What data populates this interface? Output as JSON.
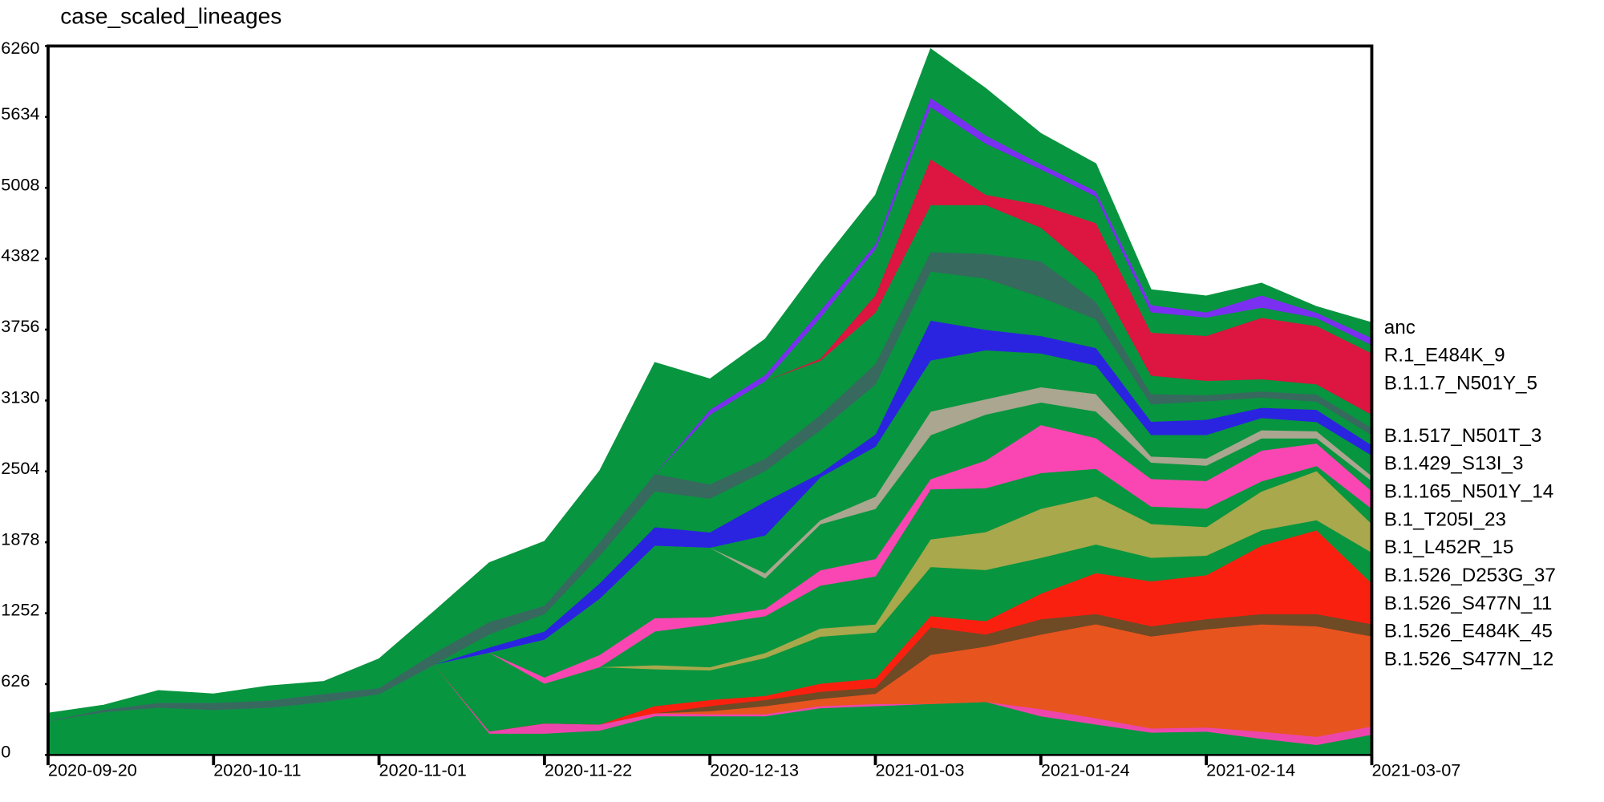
{
  "chart_data": {
    "type": "stacked_area",
    "title": "case_scaled_lineages",
    "x": [
      "2020-09-20",
      "2020-09-27",
      "2020-10-04",
      "2020-10-11",
      "2020-10-18",
      "2020-10-25",
      "2020-11-01",
      "2020-11-08",
      "2020-11-15",
      "2020-11-22",
      "2020-11-29",
      "2020-12-06",
      "2020-12-13",
      "2020-12-20",
      "2020-12-27",
      "2021-01-03",
      "2021-01-10",
      "2021-01-17",
      "2021-01-24",
      "2021-01-31",
      "2021-02-07",
      "2021-02-14",
      "2021-02-21",
      "2021-02-28",
      "2021-03-07"
    ],
    "xlim": [
      "2020-09-20",
      "2021-03-07"
    ],
    "xticks": [
      "2020-09-20",
      "2020-10-11",
      "2020-11-01",
      "2020-11-22",
      "2020-12-13",
      "2021-01-03",
      "2021-01-24",
      "2021-02-14",
      "2021-03-07"
    ],
    "ylim": [
      0,
      6260
    ],
    "yticks": [
      0,
      626,
      1252,
      1878,
      2504,
      3130,
      3756,
      4382,
      5008,
      5634,
      6260
    ],
    "series": [
      {
        "color": "#08953f",
        "values": [
          300,
          380,
          420,
          400,
          420,
          470,
          540,
          800,
          190,
          190,
          217,
          343,
          343,
          343,
          415,
          433,
          452,
          470,
          343,
          271,
          199,
          208,
          144,
          90,
          181
        ]
      },
      {
        "name": "B.1.526_S477N_12",
        "color": "#ec46ac",
        "values": [
          0,
          0,
          0,
          0,
          0,
          0,
          0,
          0,
          20,
          90,
          54,
          27,
          18,
          18,
          18,
          18,
          0,
          0,
          63,
          54,
          36,
          36,
          63,
          72,
          72
        ]
      },
      {
        "name": "B.1.526_E484K_45",
        "color": "#e8541e",
        "values": [
          0,
          0,
          0,
          0,
          0,
          0,
          0,
          0,
          0,
          0,
          0,
          0,
          27,
          72,
          63,
          90,
          433,
          488,
          659,
          831,
          813,
          867,
          948,
          975,
          795
        ]
      },
      {
        "name": "B.1.526_S477N_11",
        "color": "#6e4a25",
        "values": [
          0,
          0,
          0,
          0,
          0,
          0,
          0,
          0,
          0,
          0,
          0,
          0,
          45,
          54,
          63,
          54,
          244,
          108,
          135,
          90,
          90,
          90,
          90,
          108,
          108
        ]
      },
      {
        "name": "B.1.526_D253G_37",
        "color": "#fa2010",
        "values": [
          0,
          0,
          0,
          0,
          0,
          0,
          0,
          0,
          0,
          0,
          0,
          63,
          54,
          36,
          72,
          81,
          99,
          117,
          226,
          361,
          397,
          388,
          605,
          740,
          361
        ]
      },
      {
        "color": "#08953f",
        "values": [
          0,
          0,
          0,
          0,
          0,
          0,
          0,
          0,
          695,
          352,
          506,
          325,
          262,
          334,
          415,
          406,
          433,
          452,
          316,
          253,
          208,
          172,
          135,
          90,
          271
        ]
      },
      {
        "name": "B.1_L452R_15",
        "color": "#a9a84c",
        "values": [
          0,
          0,
          0,
          0,
          0,
          0,
          0,
          0,
          0,
          0,
          0,
          36,
          27,
          45,
          72,
          72,
          244,
          334,
          433,
          424,
          298,
          253,
          343,
          433,
          253
        ]
      },
      {
        "color": "#08953f",
        "values": [
          0,
          0,
          0,
          0,
          0,
          0,
          0,
          0,
          0,
          0,
          0,
          298,
          379,
          325,
          379,
          424,
          442,
          388,
          316,
          244,
          154,
          163,
          90,
          45,
          135
        ]
      },
      {
        "name": "B.1_T205I_23",
        "color": "#f946b2",
        "values": [
          0,
          0,
          0,
          0,
          0,
          0,
          0,
          0,
          0,
          54,
          108,
          117,
          63,
          63,
          135,
          154,
          90,
          244,
          424,
          271,
          244,
          244,
          271,
          199,
          154
        ]
      },
      {
        "color": "#08953f",
        "values": [
          0,
          0,
          0,
          0,
          0,
          0,
          0,
          0,
          0,
          334,
          497,
          641,
          614,
          271,
          406,
          442,
          388,
          406,
          199,
          235,
          144,
          135,
          108,
          45,
          90
        ]
      },
      {
        "name": "B.1.165_N501Y_14",
        "color": "#aaa690",
        "values": [
          0,
          0,
          0,
          0,
          0,
          0,
          0,
          0,
          0,
          0,
          0,
          0,
          0,
          45,
          36,
          108,
          208,
          135,
          135,
          154,
          54,
          63,
          72,
          63,
          45
        ]
      },
      {
        "color": "#08953f",
        "values": [
          0,
          0,
          0,
          0,
          0,
          0,
          0,
          0,
          0,
          0,
          0,
          0,
          0,
          334,
          379,
          442,
          452,
          433,
          298,
          253,
          190,
          208,
          108,
          81,
          181
        ]
      },
      {
        "name": "B.1.429_S13I_3",
        "color": "#2a24e0",
        "values": [
          0,
          0,
          0,
          0,
          0,
          0,
          0,
          0,
          45,
          72,
          135,
          163,
          135,
          298,
          36,
          108,
          352,
          181,
          154,
          154,
          117,
          135,
          90,
          108,
          90
        ]
      },
      {
        "color": "#08953f",
        "values": [
          0,
          0,
          0,
          0,
          0,
          0,
          0,
          0,
          117,
          154,
          244,
          316,
          298,
          271,
          379,
          442,
          433,
          452,
          343,
          253,
          154,
          163,
          90,
          72,
          90
        ]
      },
      {
        "name": "B.1.517_N501T_3",
        "color": "#37695f",
        "values": [
          0,
          20,
          40,
          60,
          60,
          70,
          50,
          100,
          108,
          72,
          117,
          154,
          126,
          108,
          135,
          181,
          172,
          217,
          316,
          154,
          90,
          54,
          54,
          63,
          63
        ]
      },
      {
        "color": "#08953f",
        "values": [
          0,
          0,
          0,
          0,
          0,
          0,
          0,
          0,
          0,
          0,
          0,
          0,
          614,
          686,
          479,
          452,
          415,
          433,
          298,
          244,
          163,
          126,
          108,
          90,
          117
        ]
      },
      {
        "name": "B.1.1.7_N501Y_5",
        "color": "#dc1541",
        "values": [
          0,
          0,
          0,
          0,
          0,
          0,
          0,
          0,
          0,
          0,
          0,
          0,
          0,
          0,
          18,
          154,
          406,
          90,
          199,
          452,
          379,
          397,
          542,
          515,
          542
        ]
      },
      {
        "color": "#08953f",
        "values": [
          0,
          0,
          0,
          0,
          0,
          0,
          0,
          0,
          0,
          0,
          0,
          0,
          0,
          0,
          361,
          406,
          460,
          452,
          316,
          235,
          181,
          163,
          90,
          72,
          72
        ]
      },
      {
        "name": "R.1_E484K_9",
        "color": "#7b2ff0",
        "values": [
          0,
          0,
          0,
          0,
          0,
          0,
          0,
          0,
          0,
          0,
          0,
          0,
          45,
          54,
          63,
          45,
          81,
          72,
          45,
          45,
          63,
          45,
          108,
          45,
          63
        ]
      },
      {
        "name": "anc",
        "color": "#08953f",
        "values": [
          70,
          40,
          110,
          80,
          130,
          110,
          260,
          370,
          524,
          569,
          632,
          984,
          271,
          316,
          406,
          433,
          433,
          415,
          271,
          244,
          135,
          144,
          108,
          54,
          135
        ]
      }
    ]
  }
}
